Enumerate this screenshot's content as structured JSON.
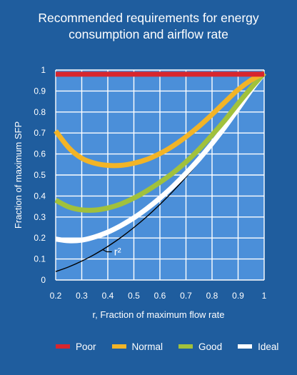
{
  "chart_data": {
    "type": "line",
    "title_line1": "Recommended requirements for energy",
    "title_line2": "consumption and airflow rate",
    "xlabel": "r, Fraction of maximum flow rate",
    "ylabel": "Fraction of maximum SFP",
    "xlim": [
      0.2,
      1
    ],
    "ylim": [
      0,
      1
    ],
    "grid": true,
    "legend_position": "bottom",
    "x_ticks": [
      "0.2",
      "0.3",
      "0.4",
      "0.5",
      "0.6",
      "0.7",
      "0.8",
      "0.9",
      "1"
    ],
    "y_ticks": [
      "0",
      "0.1",
      "0.2",
      "0.3",
      "0.4",
      "0.5",
      "0.6",
      "0.7",
      "0.8",
      "0.9",
      "1"
    ],
    "x": [
      0.2,
      0.25,
      0.3,
      0.35,
      0.4,
      0.45,
      0.5,
      0.55,
      0.6,
      0.65,
      0.7,
      0.75,
      0.8,
      0.85,
      0.9,
      0.95,
      1.0
    ],
    "series": [
      {
        "name": "Poor",
        "color": "#d7262e",
        "values": [
          0.98,
          0.98,
          0.98,
          0.98,
          0.98,
          0.98,
          0.98,
          0.98,
          0.98,
          0.98,
          0.98,
          0.98,
          0.98,
          0.98,
          0.98,
          0.98,
          0.98
        ]
      },
      {
        "name": "Normal",
        "color": "#f2b427",
        "values": [
          0.71,
          0.63,
          0.58,
          0.556,
          0.546,
          0.546,
          0.556,
          0.574,
          0.602,
          0.638,
          0.682,
          0.732,
          0.788,
          0.848,
          0.906,
          0.952,
          0.985
        ]
      },
      {
        "name": "Good",
        "color": "#a1c13c",
        "values": [
          0.38,
          0.348,
          0.334,
          0.333,
          0.343,
          0.362,
          0.39,
          0.425,
          0.465,
          0.51,
          0.562,
          0.622,
          0.69,
          0.762,
          0.84,
          0.915,
          0.985
        ]
      },
      {
        "name": "Ideal",
        "color": "#ffffff",
        "values": [
          0.195,
          0.187,
          0.19,
          0.205,
          0.228,
          0.259,
          0.296,
          0.34,
          0.39,
          0.446,
          0.508,
          0.576,
          0.65,
          0.73,
          0.816,
          0.905,
          0.985
        ]
      }
    ],
    "reference_curve": {
      "label": "r²",
      "color": "#000000",
      "values": [
        0.04,
        0.0625,
        0.09,
        0.1225,
        0.16,
        0.2025,
        0.25,
        0.3025,
        0.36,
        0.4225,
        0.49,
        0.5625,
        0.64,
        0.7225,
        0.81,
        0.9025,
        0.985
      ]
    }
  }
}
